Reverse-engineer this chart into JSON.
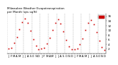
{
  "title": "Milwaukee Weather Evapotranspiration\nper Month (qts sq/ft)",
  "title_fontsize": 3.0,
  "x_labels": [
    "J",
    "F",
    "M",
    "A",
    "M",
    "J",
    "J",
    "A",
    "S",
    "O",
    "N",
    "D",
    "J",
    "F",
    "M",
    "A",
    "M",
    "J",
    "J",
    "A",
    "S",
    "O",
    "N",
    "D",
    "J",
    "F",
    "M",
    "A",
    "M",
    "J",
    "J",
    "A",
    "S",
    "O",
    "N",
    "D"
  ],
  "months": [
    0,
    1,
    2,
    3,
    4,
    5,
    6,
    7,
    8,
    9,
    10,
    11,
    12,
    13,
    14,
    15,
    16,
    17,
    18,
    19,
    20,
    21,
    22,
    23,
    24,
    25,
    26,
    27,
    28,
    29,
    30,
    31,
    32,
    33,
    34,
    35
  ],
  "et_values": [
    2.1,
    2.5,
    4.5,
    7.0,
    10.5,
    13.5,
    14.8,
    13.2,
    9.8,
    6.0,
    3.2,
    1.8,
    2.0,
    2.3,
    4.2,
    6.8,
    10.2,
    13.2,
    14.5,
    12.8,
    9.5,
    5.8,
    3.0,
    1.7,
    1.9,
    2.2,
    4.0,
    6.5,
    10.0,
    13.0,
    14.2,
    12.5,
    9.2,
    5.5,
    2.8,
    1.6
  ],
  "line_color": "#cc0000",
  "marker": "s",
  "markersize": 1.2,
  "legend_color": "#cc0000",
  "background_color": "#ffffff",
  "grid_color": "#999999",
  "ylim": [
    0,
    17
  ],
  "yticks": [
    2,
    4,
    6,
    8,
    10,
    12,
    14,
    16
  ],
  "ylabel_fontsize": 3.0,
  "xlabel_fontsize": 2.8,
  "vgrid_positions": [
    0,
    3,
    6,
    9,
    12,
    15,
    18,
    21,
    24,
    27,
    30,
    33
  ]
}
